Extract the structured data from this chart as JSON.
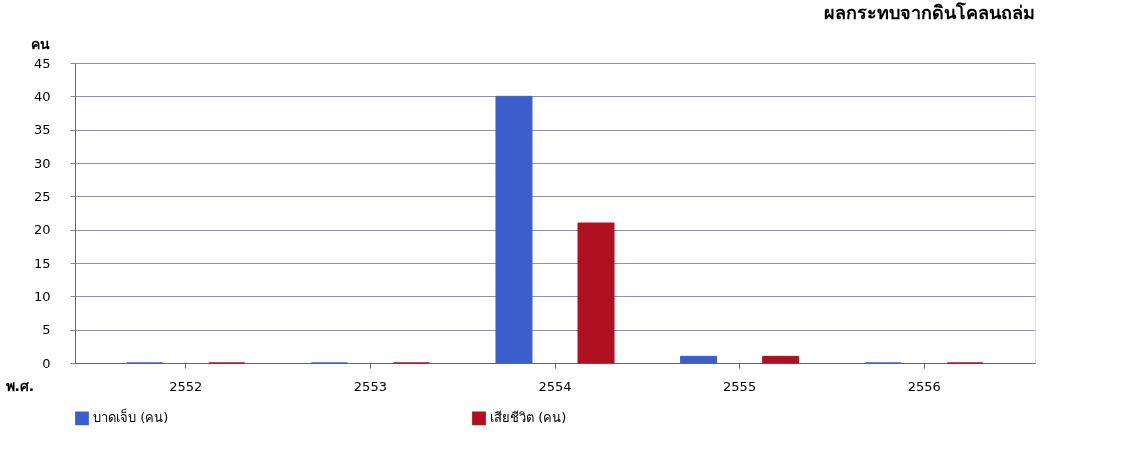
{
  "chart_data": {
    "type": "bar",
    "title": "ผลกระทบจากดินโคลนถล่ม",
    "xlabel": "พ.ศ.",
    "ylabel": "คน",
    "categories": [
      "2552",
      "2553",
      "2554",
      "2555",
      "2556"
    ],
    "series": [
      {
        "name": "บาดเจ็บ (คน)",
        "color": "#3a5fcd",
        "values": [
          0,
          0,
          40,
          1,
          0
        ]
      },
      {
        "name": "เสียชีวิต (คน)",
        "color": "#b01020",
        "values": [
          0,
          0,
          21,
          1,
          0
        ]
      }
    ],
    "ylim": [
      0,
      45
    ],
    "yticks": [
      0,
      5,
      10,
      15,
      20,
      25,
      30,
      35,
      40,
      45
    ],
    "grid": "y",
    "legend": "bottom"
  }
}
